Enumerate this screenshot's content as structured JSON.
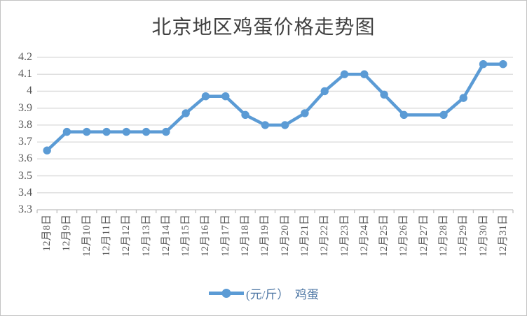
{
  "chart_data": {
    "type": "line",
    "title": "北京地区鸡蛋价格走势图",
    "categories": [
      "12月8日",
      "12月9日",
      "12月10日",
      "12月11日",
      "12月12日",
      "12月13日",
      "12月14日",
      "12月15日",
      "12月16日",
      "12月17日",
      "12月18日",
      "12月19日",
      "12月20日",
      "12月21日",
      "12月22日",
      "12月23日",
      "12月24日",
      "12月25日",
      "12月26日",
      "12月27日",
      "12月28日",
      "12月29日",
      "12月30日",
      "12月31日"
    ],
    "series": [
      {
        "name": "(元/斤）　鸡蛋",
        "values": [
          3.65,
          3.76,
          3.76,
          3.76,
          3.76,
          3.76,
          3.76,
          3.87,
          3.97,
          3.97,
          3.86,
          3.8,
          3.8,
          3.87,
          4.0,
          4.1,
          4.1,
          3.98,
          3.86,
          3.86,
          3.86,
          3.96,
          4.16,
          4.16
        ],
        "color": "#5B9BD5",
        "no_marker_indices": [
          19
        ]
      }
    ],
    "xlabel": "",
    "ylabel": "",
    "ylim": [
      3.3,
      4.2
    ],
    "yticks": [
      "4.2",
      "4.1",
      "4",
      "3.9",
      "3.8",
      "3.7",
      "3.6",
      "3.5",
      "3.4",
      "3.3"
    ],
    "grid": true,
    "legend_position": "bottom"
  },
  "legend": {
    "label": "(元/斤）　鸡蛋"
  },
  "colors": {
    "series": "#5B9BD5",
    "gridline": "#D9D9D9",
    "axis": "#BFBFBF",
    "title_text": "#404040",
    "tick_text": "#595959",
    "legend_text": "#4D76A4",
    "background": "#FFFFFF",
    "border": "#C3C3C3"
  }
}
